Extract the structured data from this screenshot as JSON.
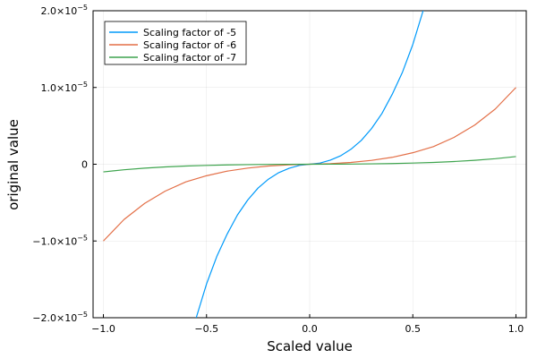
{
  "chart_data": {
    "type": "line",
    "title": "",
    "xlabel": "Scaled value",
    "ylabel": "original value",
    "xlim": [
      -1.05,
      1.05
    ],
    "ylim": [
      -2e-05,
      2e-05
    ],
    "x_ticks": [
      -1.0,
      -0.5,
      0.0,
      0.5,
      1.0
    ],
    "x_tick_labels": [
      "−1.0",
      "−0.5",
      "0.0",
      "0.5",
      "1.0"
    ],
    "y_ticks": [
      -2e-05,
      -1e-05,
      0,
      1e-05,
      2e-05
    ],
    "y_tick_labels": [
      {
        "mantissa": "−2.0×10",
        "exp": "−5"
      },
      {
        "mantissa": "−1.0×10",
        "exp": "−5"
      },
      {
        "mantissa": "0",
        "exp": ""
      },
      {
        "mantissa": "1.0×10",
        "exp": "−5"
      },
      {
        "mantissa": "2.0×10",
        "exp": "−5"
      }
    ],
    "grid": true,
    "legend_position": "top-left",
    "series": [
      {
        "name": "Scaling factor of -5",
        "color": "#009AFA",
        "x": [
          -0.55,
          -0.5,
          -0.45,
          -0.4,
          -0.35,
          -0.3,
          -0.25,
          -0.2,
          -0.15,
          -0.1,
          -0.05,
          0.0,
          0.05,
          0.1,
          0.15,
          0.2,
          0.25,
          0.3,
          0.35,
          0.4,
          0.45,
          0.5,
          0.55
        ],
        "y": [
          -2e-05,
          -1.56e-05,
          -1.2e-05,
          -9.1e-06,
          -6.6e-06,
          -4.65e-06,
          -3.1e-06,
          -1.95e-06,
          -1.1e-06,
          -5.3e-07,
          -1.5e-07,
          0,
          1.5e-07,
          5.3e-07,
          1.1e-06,
          1.95e-06,
          3.1e-06,
          4.65e-06,
          6.6e-06,
          9.1e-06,
          1.2e-05,
          1.56e-05,
          2e-05
        ]
      },
      {
        "name": "Scaling factor of -6",
        "color": "#E36F47",
        "x": [
          -1.0,
          -0.9,
          -0.8,
          -0.7,
          -0.6,
          -0.5,
          -0.4,
          -0.3,
          -0.2,
          -0.1,
          0.0,
          0.1,
          0.2,
          0.3,
          0.4,
          0.5,
          0.6,
          0.7,
          0.8,
          0.9,
          1.0
        ],
        "y": [
          -1e-05,
          -7.2e-06,
          -5.1e-06,
          -3.5e-06,
          -2.3e-06,
          -1.5e-06,
          -9e-07,
          -5e-07,
          -2.3e-07,
          -8e-08,
          0,
          8e-08,
          2.3e-07,
          5e-07,
          9e-07,
          1.5e-06,
          2.3e-06,
          3.5e-06,
          5.1e-06,
          7.2e-06,
          1e-05
        ]
      },
      {
        "name": "Scaling factor of -7",
        "color": "#3EA44E",
        "x": [
          -1.0,
          -0.9,
          -0.8,
          -0.7,
          -0.6,
          -0.5,
          -0.4,
          -0.3,
          -0.2,
          -0.1,
          0.0,
          0.1,
          0.2,
          0.3,
          0.4,
          0.5,
          0.6,
          0.7,
          0.8,
          0.9,
          1.0
        ],
        "y": [
          -1e-06,
          -7.2e-07,
          -5.1e-07,
          -3.5e-07,
          -2.3e-07,
          -1.5e-07,
          -9e-08,
          -5e-08,
          -2.3e-08,
          -8e-09,
          0,
          8e-09,
          2.3e-08,
          5e-08,
          9e-08,
          1.5e-07,
          2.3e-07,
          3.5e-07,
          5.1e-07,
          7.2e-07,
          1e-06
        ]
      }
    ]
  }
}
